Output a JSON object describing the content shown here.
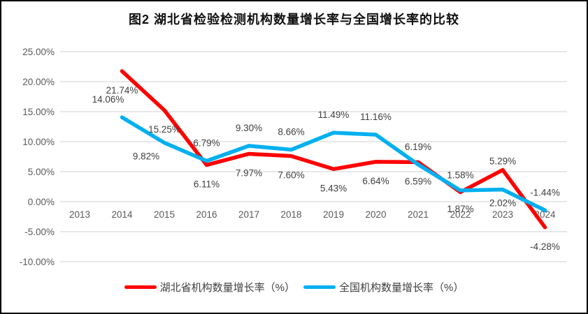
{
  "chart_data": {
    "type": "line",
    "title": "图2 湖北省检验检测机构数量增长率与全国增长率的比较",
    "categories": [
      "2013",
      "2014",
      "2015",
      "2016",
      "2017",
      "2018",
      "2019",
      "2020",
      "2021",
      "2022",
      "2023",
      "2024"
    ],
    "y_axis": {
      "min": -10,
      "max": 25,
      "step": 5,
      "tick_labels": [
        "25.00%",
        "20.00%",
        "15.00%",
        "10.00%",
        "5.00%",
        "0.00%",
        "-5.00%",
        "-10.00%"
      ]
    },
    "grid": true,
    "legend_position": "bottom",
    "series": [
      {
        "id": "hubei",
        "name": "湖北省机构数量增长率（%）",
        "color": "#FF0000",
        "values": [
          null,
          21.74,
          15.25,
          6.11,
          7.97,
          7.6,
          5.43,
          6.64,
          6.59,
          1.58,
          5.29,
          -4.28
        ],
        "labels": [
          null,
          "21.74%",
          "15.25%",
          "6.11%",
          "7.97%",
          "7.60%",
          "5.43%",
          "6.64%",
          "6.59%",
          "1.58%",
          "5.29%",
          "-4.28%"
        ],
        "label_default": "below",
        "label_offsets": {
          "above": -20,
          "below": 32
        },
        "label_overrides": {
          "2022": {
            "pos": "above"
          },
          "2023": {
            "pos": "above",
            "dy": 12
          }
        }
      },
      {
        "id": "national",
        "name": "全国机构数量增长率（%）",
        "color": "#00B0F0",
        "values": [
          null,
          14.06,
          9.82,
          6.79,
          9.3,
          8.66,
          11.49,
          11.16,
          6.19,
          1.87,
          2.02,
          -1.44
        ],
        "labels": [
          null,
          "14.06%",
          "9.82%",
          "6.79%",
          "9.30%",
          "8.66%",
          "11.49%",
          "11.16%",
          "6.19%",
          "1.87%",
          "2.02%",
          "-1.44%"
        ],
        "label_default": "above",
        "label_offsets": {
          "above": -21,
          "below": 24
        },
        "label_overrides": {
          "2014": {
            "dx": -20
          },
          "2015": {
            "pos": "below",
            "dx": -26
          },
          "2022": {
            "pos": "below",
            "dy": 7
          },
          "2023": {
            "pos": "below"
          }
        }
      }
    ],
    "colors": {
      "grid": "#D9D9D9",
      "axis_text": "#595959",
      "data_label_text": "#404040",
      "border": "#000000",
      "background": "#FFFFFF"
    }
  }
}
